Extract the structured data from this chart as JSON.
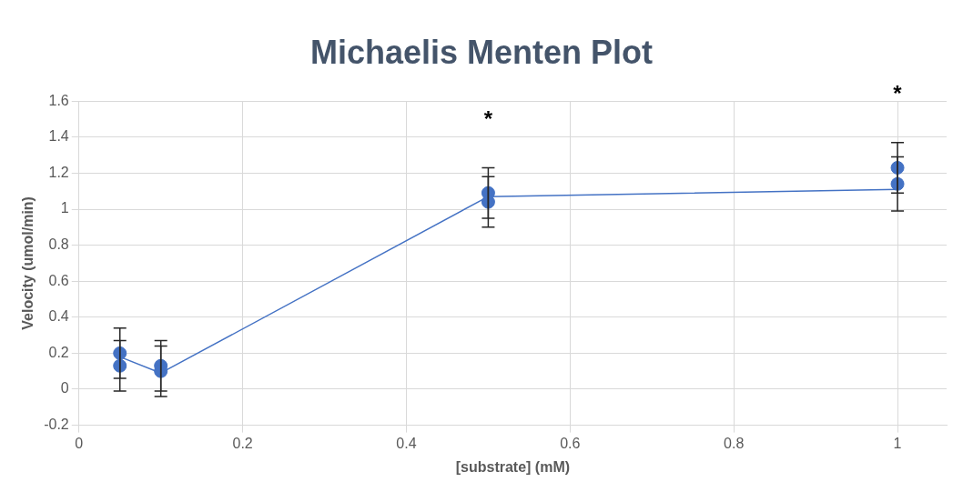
{
  "chart_data": {
    "type": "scatter",
    "title": "Michaelis Menten Plot",
    "xlabel": "[substrate] (mM)",
    "ylabel": "Velocity (umol/min)",
    "xlim": [
      0,
      1.06
    ],
    "xticks": [
      0,
      0.2,
      0.4,
      0.6,
      0.8,
      1
    ],
    "ylim": [
      -0.2,
      1.6
    ],
    "yticks": [
      -0.2,
      0,
      0.2,
      0.4,
      0.6,
      0.8,
      1,
      1.2,
      1.4,
      1.6
    ],
    "grid": true,
    "legend": false,
    "series": [
      {
        "type": "scatter",
        "color": "#4472c4",
        "marker": "circle",
        "x": [
          0.05,
          0.05,
          0.1,
          0.1,
          0.5,
          0.5,
          1,
          1
        ],
        "values": [
          0.2,
          0.13,
          0.13,
          0.1,
          1.09,
          1.04,
          1.23,
          1.14
        ],
        "errors": [
          0.14,
          0.14,
          0.14,
          0.14,
          0.14,
          0.14,
          0.14,
          0.15
        ]
      },
      {
        "type": "line",
        "color": "#4472c4",
        "marker": "none",
        "x": [
          0.05,
          0.1,
          0.5,
          1
        ],
        "values": [
          0.18,
          0.09,
          1.07,
          1.11
        ]
      }
    ],
    "annotations": [
      {
        "text": "*",
        "x": 0.5,
        "y": 1.09
      },
      {
        "text": "*",
        "x": 1,
        "y": 1.23
      }
    ]
  }
}
